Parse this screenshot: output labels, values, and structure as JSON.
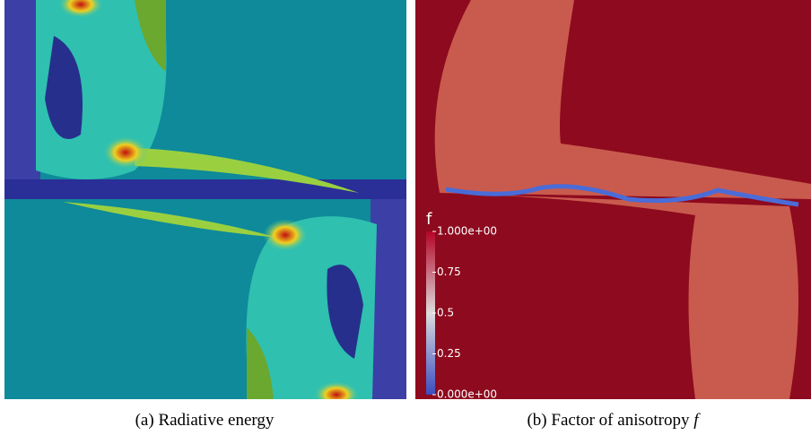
{
  "panels": [
    {
      "caption": {
        "label": "(a)",
        "text": "Radiative energy"
      }
    },
    {
      "caption": {
        "label": "(b)",
        "text": "Factor of anisotropy",
        "symbol": "f"
      },
      "colorbar": {
        "title": "f",
        "clim": [
          0,
          1
        ],
        "ticks": [
          {
            "value": 1,
            "label": "1.000e+00"
          },
          0.75,
          0.5,
          0.25,
          {
            "value": 0,
            "label": "0.000e+00"
          }
        ]
      }
    }
  ]
}
